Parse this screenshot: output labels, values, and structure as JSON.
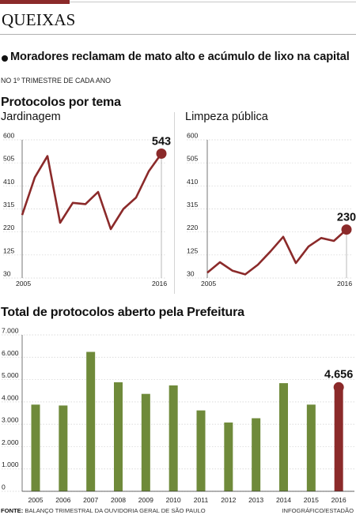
{
  "kicker": "QUEIXAS",
  "headline": "Moradores reclamam de mato alto e acúmulo de lixo na capital",
  "subhead": "NO 1º TRIMESTRE DE CADA ANO",
  "section1_title": "Protocolos por tema",
  "section2_title": "Total de protocolos aberto pela Prefeitura",
  "source_label": "FONTE:",
  "source_text": "BALANÇO TRIMESTRAL DA OUVIDORIA GERAL DE SÃO PAULO",
  "credit": "INFOGRÁFICO/ESTADÃO",
  "colors": {
    "line": "#8b2a2a",
    "bar": "#6f8a3a",
    "highlight": "#8b2a2a"
  },
  "chart_data": [
    {
      "type": "line",
      "title": "Jardinagem",
      "x": [
        2005,
        2006,
        2007,
        2008,
        2009,
        2010,
        2011,
        2012,
        2013,
        2014,
        2015,
        2016
      ],
      "y": [
        290,
        445,
        533,
        258,
        340,
        335,
        385,
        232,
        315,
        362,
        470,
        543
      ],
      "yticks": [
        30,
        125,
        220,
        315,
        410,
        505,
        600
      ],
      "xtick_labels": [
        "2005",
        "2016"
      ],
      "ylim": [
        30,
        600
      ],
      "callout": "543",
      "grid": true
    },
    {
      "type": "line",
      "title": "Limpeza pública",
      "x": [
        2005,
        2006,
        2007,
        2008,
        2009,
        2010,
        2011,
        2012,
        2013,
        2014,
        2015,
        2016
      ],
      "y": [
        52,
        95,
        60,
        45,
        85,
        140,
        200,
        92,
        160,
        195,
        183,
        230
      ],
      "yticks": [
        30,
        125,
        220,
        315,
        410,
        505,
        600
      ],
      "xtick_labels": [
        "2005",
        "2016"
      ],
      "ylim": [
        30,
        600
      ],
      "callout": "230",
      "grid": true
    },
    {
      "type": "bar",
      "categories": [
        "2005",
        "2006",
        "2007",
        "2008",
        "2009",
        "2010",
        "2011",
        "2012",
        "2013",
        "2014",
        "2015",
        "2016"
      ],
      "values": [
        3880,
        3840,
        6240,
        4880,
        4360,
        4740,
        3620,
        3080,
        3270,
        4840,
        3880,
        4656
      ],
      "yticks": [
        "0",
        "1.000",
        "2.000",
        "3.000",
        "4.000",
        "5.000",
        "6.000",
        "7.000"
      ],
      "ylim": [
        0,
        7000
      ],
      "callout": "4.656",
      "grid": true
    }
  ]
}
